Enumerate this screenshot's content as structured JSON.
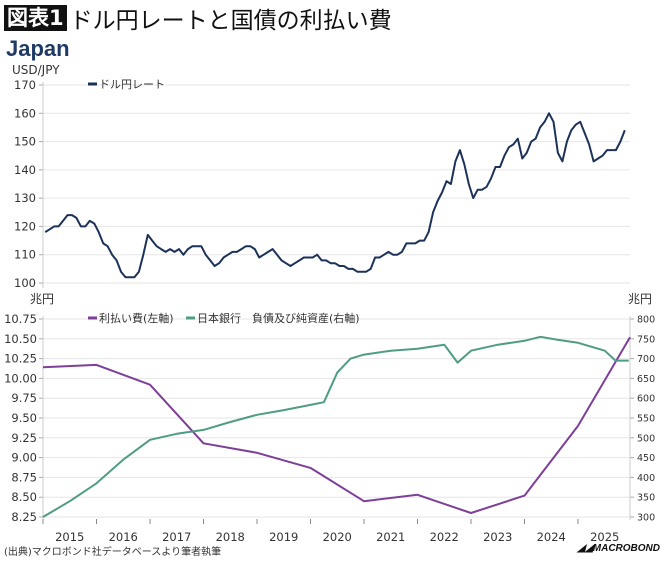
{
  "header": {
    "badge": "図表1",
    "title": "ドル円レートと国債の利払い費"
  },
  "country": "Japan",
  "source": "(出典)マクロボンド社データベースより筆者執筆",
  "logo": "MACROBOND",
  "colors": {
    "usdjpy": "#1c3259",
    "interest": "#7d3f98",
    "boj": "#4f9c84",
    "grid": "#e6e6e6"
  },
  "chart_data": [
    {
      "type": "line",
      "ylabel": "USD/JPY",
      "ylim": [
        100,
        170
      ],
      "yticks": [
        100,
        110,
        120,
        130,
        140,
        150,
        160,
        170
      ],
      "grid": true,
      "legend_placement": "top-left",
      "x_start": "2015-01",
      "x_step": "monthly",
      "series": [
        {
          "name": "ドル円レート",
          "values": [
            118,
            119,
            120,
            120,
            122,
            124,
            124,
            123,
            120,
            120,
            122,
            121,
            118,
            114,
            113,
            110,
            108,
            104,
            102,
            102,
            102,
            104,
            110,
            117,
            115,
            113,
            112,
            111,
            112,
            111,
            112,
            110,
            112,
            113,
            113,
            113,
            110,
            108,
            106,
            107,
            109,
            110,
            111,
            111,
            112,
            113,
            113,
            112,
            109,
            110,
            111,
            112,
            110,
            108,
            107,
            106,
            107,
            108,
            109,
            109,
            109,
            110,
            108,
            108,
            107,
            107,
            106,
            106,
            105,
            105,
            104,
            104,
            104,
            105,
            109,
            109,
            110,
            111,
            110,
            110,
            111,
            114,
            114,
            114,
            115,
            115,
            118,
            125,
            129,
            132,
            136,
            135,
            143,
            147,
            142,
            135,
            130,
            133,
            133,
            134,
            137,
            141,
            141,
            145,
            148,
            149,
            151,
            144,
            146,
            150,
            151,
            155,
            157,
            160,
            157,
            146,
            143,
            150,
            154,
            156,
            157,
            153,
            149,
            143,
            144,
            145,
            147,
            147,
            147,
            150,
            154
          ]
        }
      ]
    },
    {
      "type": "line",
      "ylabel_left": "兆円",
      "ylabel_right": "兆円",
      "ylim_left": [
        8.25,
        10.75
      ],
      "ylim_right": [
        300,
        800
      ],
      "yticks_left": [
        "8.25",
        "8.50",
        "8.75",
        "9.00",
        "9.25",
        "9.50",
        "9.75",
        "10.00",
        "10.25",
        "10.50",
        "10.75"
      ],
      "yticks_right": [
        "300",
        "350",
        "400",
        "450",
        "500",
        "550",
        "600",
        "650",
        "700",
        "750",
        "800"
      ],
      "xticks": [
        "2015",
        "2016",
        "2017",
        "2018",
        "2019",
        "2020",
        "2021",
        "2022",
        "2023",
        "2024",
        "2025"
      ],
      "grid": true,
      "legend_placement": "top-left",
      "series": [
        {
          "name": "利払い費(左軸)",
          "axis": "left",
          "x": [
            2015.0,
            2016.0,
            2017.0,
            2018.0,
            2019.0,
            2020.0,
            2021.0,
            2022.0,
            2023.0,
            2024.0,
            2025.0,
            2026.0
          ],
          "values": [
            10.14,
            10.17,
            9.92,
            9.18,
            9.06,
            8.87,
            8.45,
            8.53,
            8.3,
            8.52,
            9.4,
            10.52
          ]
        },
        {
          "name": "日本銀行　負債及び純資産(右軸)",
          "axis": "right",
          "x": [
            2015.0,
            2015.5,
            2016.0,
            2016.5,
            2017.0,
            2017.5,
            2018.0,
            2018.5,
            2019.0,
            2019.5,
            2020.0,
            2020.25,
            2020.5,
            2020.75,
            2021.0,
            2021.5,
            2022.0,
            2022.5,
            2022.75,
            2023.0,
            2023.5,
            2024.0,
            2024.3,
            2024.6,
            2025.0,
            2025.5,
            2025.7,
            2025.95
          ],
          "values": [
            300,
            340,
            385,
            445,
            495,
            510,
            520,
            540,
            558,
            570,
            583,
            590,
            665,
            700,
            710,
            720,
            725,
            735,
            690,
            720,
            735,
            745,
            755,
            748,
            740,
            720,
            695,
            695
          ]
        }
      ]
    }
  ]
}
